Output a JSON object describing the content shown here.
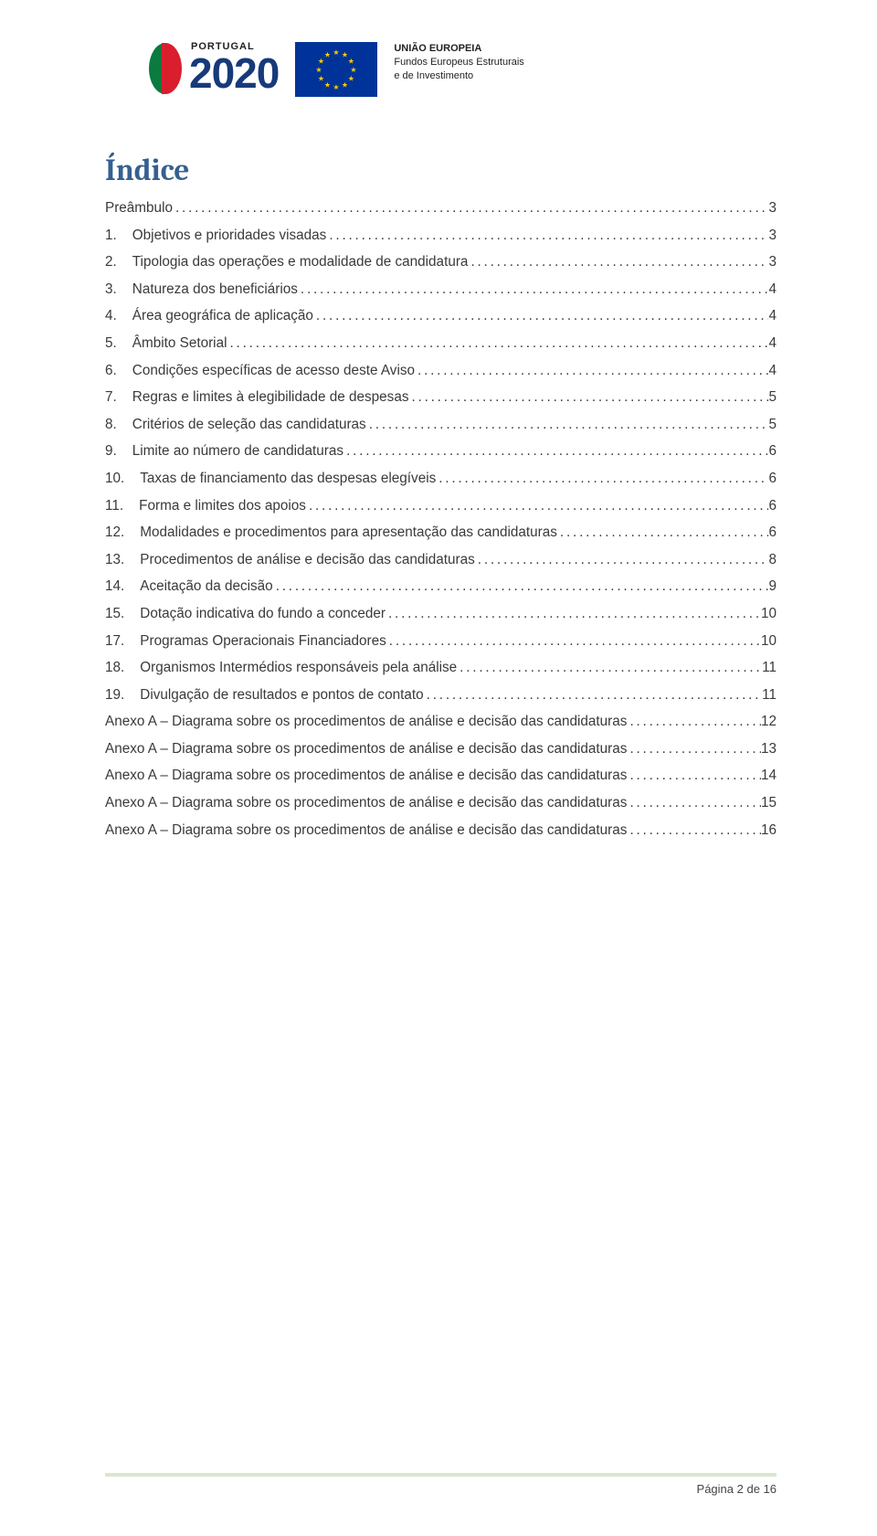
{
  "header": {
    "portugal_word": "PORTUGAL",
    "portugal_year": "2020",
    "eu_line1": "UNIÃO EUROPEIA",
    "eu_line2": "Fundos Europeus Estruturais",
    "eu_line3": "e de Investimento"
  },
  "title": "Índice",
  "toc": [
    {
      "num": "",
      "label": "Preâmbulo",
      "page": "3"
    },
    {
      "num": "1.",
      "label": "Objetivos e prioridades visadas",
      "page": "3"
    },
    {
      "num": "2.",
      "label": "Tipologia das operações e modalidade de candidatura",
      "page": "3"
    },
    {
      "num": "3.",
      "label": "Natureza dos beneficiários",
      "page": "4"
    },
    {
      "num": "4.",
      "label": "Área geográfica de aplicação",
      "page": "4"
    },
    {
      "num": "5.",
      "label": "Âmbito Setorial",
      "page": "4"
    },
    {
      "num": "6.",
      "label": "Condições específicas de acesso deste Aviso",
      "page": "4"
    },
    {
      "num": "7.",
      "label": "Regras e limites à elegibilidade de despesas",
      "page": "5"
    },
    {
      "num": "8.",
      "label": "Critérios de seleção das candidaturas",
      "page": "5"
    },
    {
      "num": "9.",
      "label": "Limite ao número de candidaturas",
      "page": "6"
    },
    {
      "num": "10.",
      "label": "Taxas de financiamento das despesas elegíveis",
      "page": "6"
    },
    {
      "num": "11.",
      "label": "Forma e limites dos apoios",
      "page": "6"
    },
    {
      "num": "12.",
      "label": "Modalidades e procedimentos para apresentação das candidaturas",
      "page": "6"
    },
    {
      "num": "13.",
      "label": "Procedimentos de análise e decisão das candidaturas",
      "page": "8"
    },
    {
      "num": "14.",
      "label": "Aceitação da decisão",
      "page": "9"
    },
    {
      "num": "15.",
      "label": "Dotação indicativa do fundo a conceder",
      "page": "10"
    },
    {
      "num": "17.",
      "label": "Programas Operacionais Financiadores",
      "page": "10"
    },
    {
      "num": "18.",
      "label": "Organismos Intermédios responsáveis pela análise",
      "page": "11"
    },
    {
      "num": "19.",
      "label": "Divulgação de resultados e pontos de contato",
      "page": "11"
    },
    {
      "num": "",
      "label": "Anexo A – Diagrama sobre os procedimentos de análise e decisão das candidaturas",
      "page": "12"
    },
    {
      "num": "",
      "label": "Anexo A – Diagrama sobre os procedimentos de análise e decisão das candidaturas",
      "page": "13"
    },
    {
      "num": "",
      "label": "Anexo A – Diagrama sobre os procedimentos de análise e decisão das candidaturas",
      "page": "14"
    },
    {
      "num": "",
      "label": "Anexo A – Diagrama sobre os procedimentos de análise e decisão das candidaturas",
      "page": "15"
    },
    {
      "num": "",
      "label": "Anexo A – Diagrama sobre os procedimentos de análise e decisão das candidaturas",
      "page": "16"
    }
  ],
  "footer": "Página 2 de 16",
  "colors": {
    "title": "#365f91",
    "text": "#3a3a3a",
    "pt_green": "#0a7a3f",
    "pt_red": "#d91e2e",
    "pt_year": "#173a7a",
    "eu_blue": "#003399",
    "eu_yellow": "#ffcc00",
    "footer_line": "#b9d4a9"
  }
}
